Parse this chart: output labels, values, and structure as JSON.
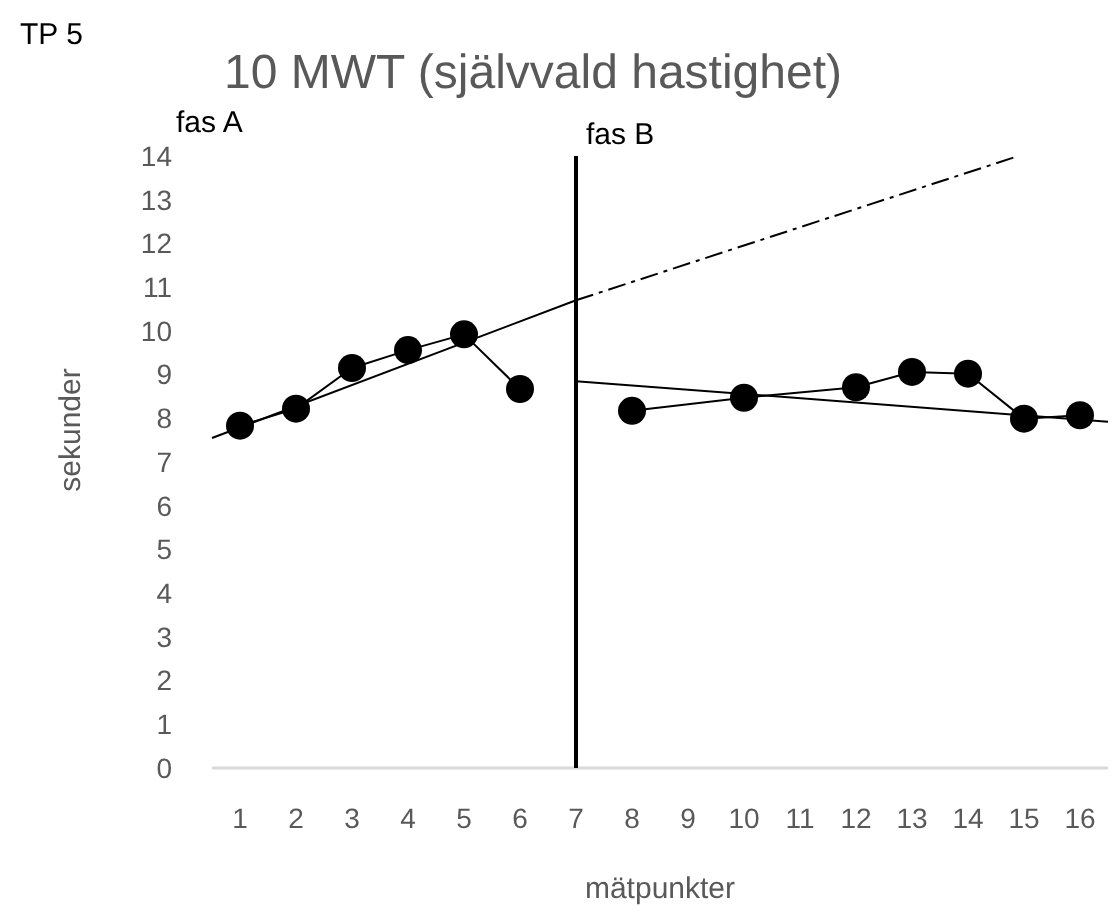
{
  "chart_data": {
    "type": "line",
    "title": "10 MWT (självvald hastighet)",
    "xlabel": "mätpunkter",
    "ylabel": "sekunder",
    "annotations": [
      "TP 5",
      "fas A",
      "fas B"
    ],
    "xlim": [
      0.5,
      16.5
    ],
    "xticks": [
      1,
      2,
      3,
      4,
      5,
      6,
      7,
      8,
      9,
      10,
      11,
      12,
      13,
      14,
      15,
      16
    ],
    "ylim": [
      0,
      14
    ],
    "yticks": [
      0,
      1,
      2,
      3,
      4,
      5,
      6,
      7,
      8,
      9,
      10,
      11,
      12,
      13,
      14
    ],
    "grid": false,
    "marker": "circle",
    "line_style": "solid",
    "ref_lines": [
      {
        "axis": "x",
        "value": 7,
        "label": null,
        "color": "#000000"
      }
    ],
    "series": [
      {
        "color": "#000000",
        "x": [
          1,
          2,
          3,
          4,
          5,
          6
        ],
        "values": [
          7.83,
          8.22,
          9.15,
          9.56,
          9.92,
          8.67
        ]
      },
      {
        "color": "#000000",
        "x": [
          8,
          10,
          12,
          13,
          14,
          15,
          16
        ],
        "values": [
          8.17,
          8.47,
          8.71,
          9.06,
          9.02,
          7.99,
          8.07
        ]
      },
      {
        "color": "#000000",
        "marker": "none",
        "x": [
          0.5,
          7
        ],
        "values": [
          7.55,
          10.7
        ]
      },
      {
        "color": "#000000",
        "marker": "none",
        "line_style": "dashed",
        "x": [
          7,
          14.9
        ],
        "values": [
          10.7,
          14
        ]
      },
      {
        "color": "#000000",
        "marker": "none",
        "x": [
          7,
          16.5
        ],
        "values": [
          8.85,
          7.92
        ]
      }
    ]
  }
}
